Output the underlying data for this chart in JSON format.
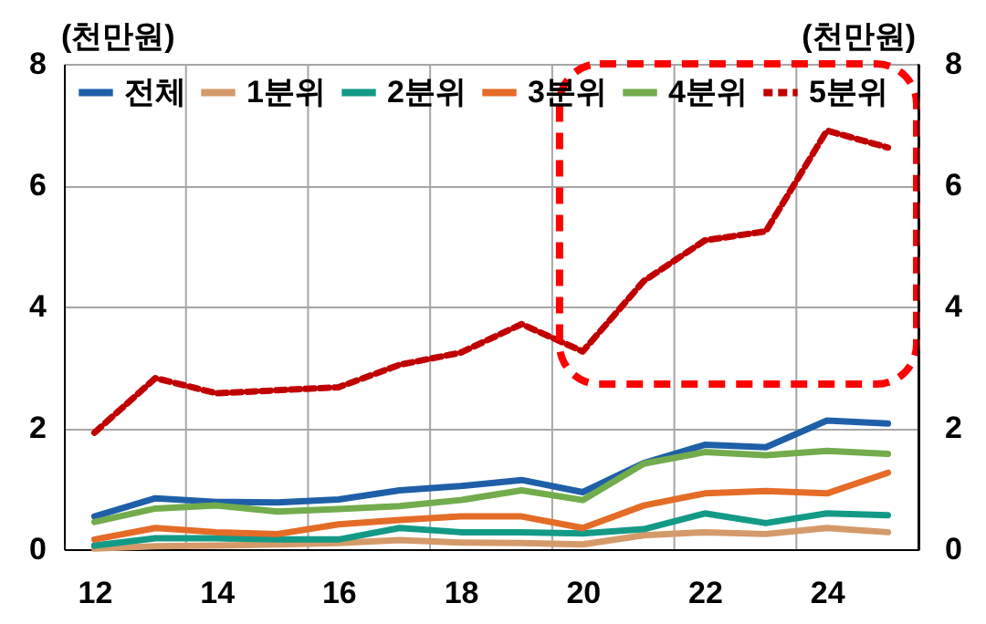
{
  "chart_data": {
    "type": "line",
    "ylabel": "(천만원)",
    "y2label": "(천만원)",
    "x": [
      12,
      13,
      14,
      15,
      16,
      17,
      18,
      19,
      20,
      21,
      22,
      23,
      24,
      25
    ],
    "xlim": [
      11.5,
      25.5
    ],
    "xticks": [
      12,
      {
        "value": 13.5,
        "label": null
      },
      14,
      {
        "value": 15.5,
        "label": null
      },
      16,
      {
        "value": 17.5,
        "label": null
      },
      18,
      {
        "value": 19.5,
        "label": null
      },
      20,
      {
        "value": 21.5,
        "label": null
      },
      22,
      {
        "value": 23.5,
        "label": null
      },
      24
    ],
    "ylim": [
      0,
      8
    ],
    "yticks": [
      0,
      2,
      4,
      6,
      8
    ],
    "y2lim": [
      0,
      8
    ],
    "y2ticks": [
      0,
      2,
      4,
      6,
      8
    ],
    "grid": true,
    "legend": "top",
    "line_style": "solid",
    "series": [
      {
        "name": "전체",
        "color": "#1f5fa8",
        "values": [
          0.54,
          0.84,
          0.78,
          0.77,
          0.82,
          0.97,
          1.04,
          1.14,
          0.94,
          1.42,
          1.72,
          1.68,
          2.12,
          2.07
        ]
      },
      {
        "name": "1분위",
        "color": "#d49a6a",
        "values": [
          0.01,
          0.05,
          0.06,
          0.08,
          0.1,
          0.15,
          0.11,
          0.1,
          0.08,
          0.23,
          0.28,
          0.25,
          0.35,
          0.28
        ]
      },
      {
        "name": "2분위",
        "color": "#139a87",
        "values": [
          0.06,
          0.18,
          0.18,
          0.16,
          0.16,
          0.35,
          0.28,
          0.28,
          0.26,
          0.33,
          0.59,
          0.43,
          0.59,
          0.56
        ]
      },
      {
        "name": "3분위",
        "color": "#e46c27",
        "values": [
          0.16,
          0.35,
          0.28,
          0.25,
          0.41,
          0.48,
          0.54,
          0.54,
          0.35,
          0.72,
          0.92,
          0.96,
          0.92,
          1.26
        ]
      },
      {
        "name": "4분위",
        "color": "#72ac4c",
        "values": [
          0.45,
          0.67,
          0.72,
          0.62,
          0.66,
          0.71,
          0.81,
          0.97,
          0.81,
          1.41,
          1.6,
          1.55,
          1.62,
          1.57
        ]
      },
      {
        "name": "5분위",
        "color": "#c00000",
        "line_style": "dashed",
        "values": [
          1.92,
          2.82,
          2.57,
          2.62,
          2.67,
          3.04,
          3.24,
          3.71,
          3.26,
          4.42,
          5.09,
          5.24,
          6.9,
          6.62
        ]
      }
    ]
  }
}
